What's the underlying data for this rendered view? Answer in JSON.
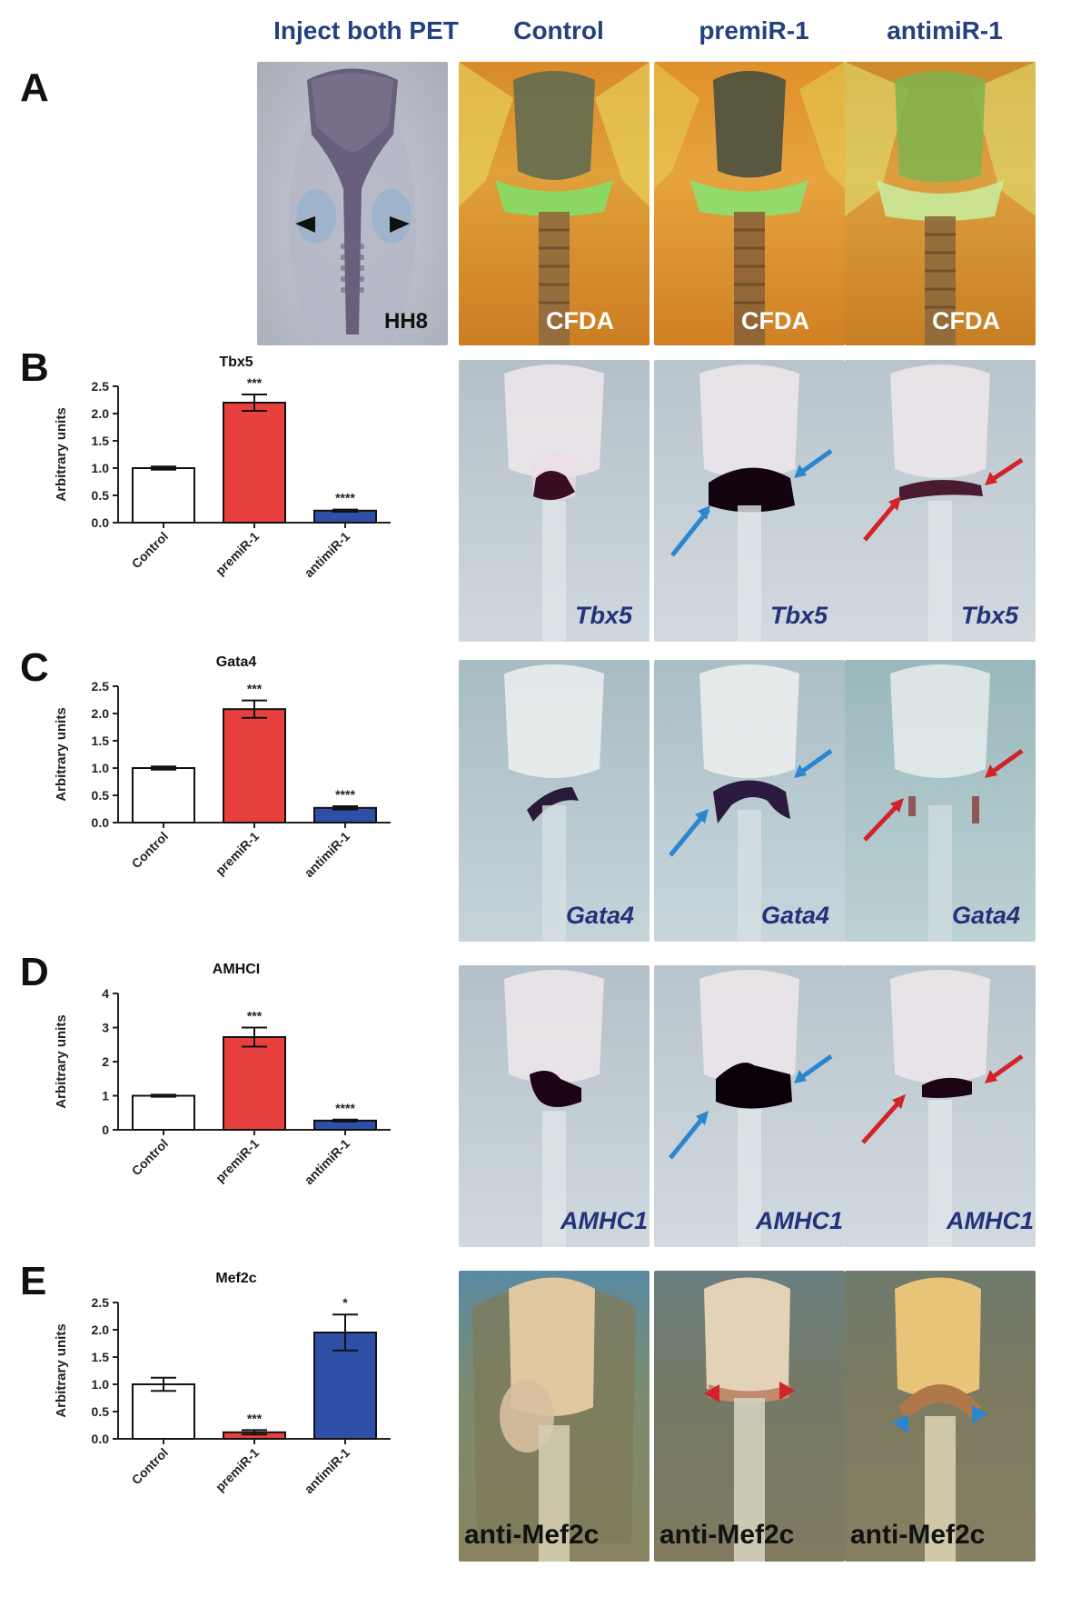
{
  "figure": {
    "column_headers": [
      "Inject both PET",
      "Control",
      "premiR-1",
      "antimiR-1"
    ],
    "panel_letters": [
      "A",
      "B",
      "C",
      "D",
      "E"
    ],
    "panel_a": {
      "stage_label": "HH8",
      "dye_label": "CFDA"
    },
    "panel_b": {
      "stain_label": "Tbx5"
    },
    "panel_c": {
      "stain_label": "Gata4"
    },
    "panel_d": {
      "stain_label": "AMHC1"
    },
    "panel_e": {
      "stain_label": "anti-Mef2c"
    }
  },
  "colors": {
    "header_blue": "#23407f",
    "premiR_red": "#e8403f",
    "antimiR_blue": "#2f4fa6",
    "arrow_blue": "#2a86d0",
    "arrow_red": "#d2232a"
  },
  "chart_data": [
    {
      "type": "bar",
      "title": "Tbx5",
      "ylabel": "Arbitrary units",
      "categories": [
        "Control",
        "premiR-1",
        "antimiR-1"
      ],
      "values": [
        1.0,
        2.2,
        0.22
      ],
      "errors": [
        0.03,
        0.15,
        0.02
      ],
      "significance": [
        "",
        "***",
        "****"
      ],
      "ylim": [
        0,
        2.5
      ],
      "yticks": [
        "0.0",
        "0.5",
        "1.0",
        "1.5",
        "2.0",
        "2.5"
      ]
    },
    {
      "type": "bar",
      "title": "Gata4",
      "ylabel": "Arbitrary units",
      "categories": [
        "Control",
        "premiR-1",
        "antimiR-1"
      ],
      "values": [
        1.0,
        2.08,
        0.27
      ],
      "errors": [
        0.03,
        0.16,
        0.03
      ],
      "significance": [
        "",
        "***",
        "****"
      ],
      "ylim": [
        0,
        2.5
      ],
      "yticks": [
        "0.0",
        "0.5",
        "1.0",
        "1.5",
        "2.0",
        "2.5"
      ]
    },
    {
      "type": "bar",
      "title": "AMHCI",
      "ylabel": "Arbitrary units",
      "categories": [
        "Control",
        "premiR-1",
        "antimiR-1"
      ],
      "values": [
        1.0,
        2.72,
        0.27
      ],
      "errors": [
        0.03,
        0.28,
        0.03
      ],
      "significance": [
        "",
        "***",
        "****"
      ],
      "ylim": [
        0,
        4
      ],
      "yticks": [
        "0",
        "1",
        "2",
        "3",
        "4"
      ]
    },
    {
      "type": "bar",
      "title": "Mef2c",
      "ylabel": "Arbitrary units",
      "categories": [
        "Control",
        "premiR-1",
        "antimiR-1"
      ],
      "values": [
        1.0,
        0.12,
        1.95
      ],
      "errors": [
        0.12,
        0.04,
        0.33
      ],
      "significance": [
        "",
        "***",
        "*"
      ],
      "ylim": [
        0,
        2.5
      ],
      "yticks": [
        "0.0",
        "0.5",
        "1.0",
        "1.5",
        "2.0",
        "2.5"
      ]
    }
  ]
}
